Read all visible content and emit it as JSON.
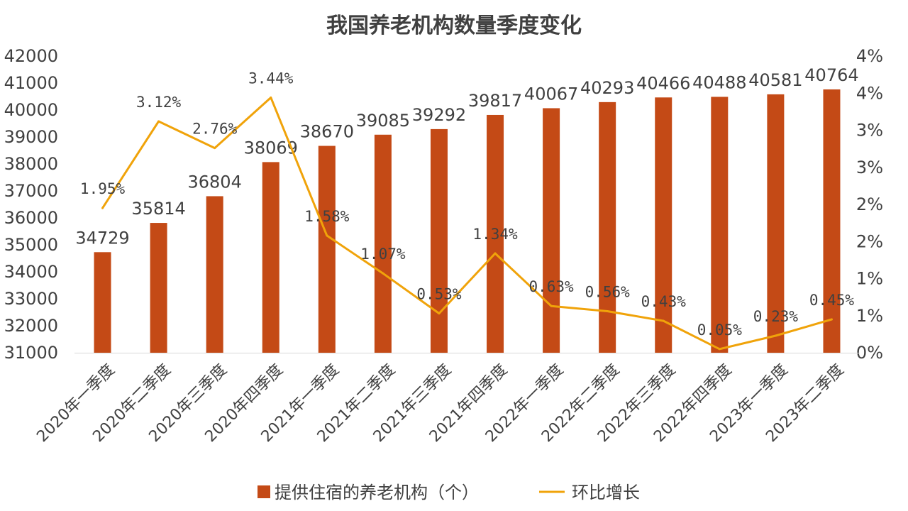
{
  "chart_data": {
    "type": "bar",
    "title": "我国养老机构数量季度变化",
    "categories": [
      "2020年一季度",
      "2020年二季度",
      "2020年三季度",
      "2020年四季度",
      "2021年一季度",
      "2021年二季度",
      "2021年三季度",
      "2021年四季度",
      "2022年一季度",
      "2022年二季度",
      "2022年三季度",
      "2022年四季度",
      "2023年一季度",
      "2023年二季度"
    ],
    "series": [
      {
        "name": "提供住宿的养老机构（个）",
        "type": "bar",
        "axis": "left",
        "color": "#C44A16",
        "values": [
          34729,
          35814,
          36804,
          38069,
          38670,
          39085,
          39292,
          39817,
          40067,
          40293,
          40466,
          40488,
          40581,
          40764
        ],
        "labels": [
          "34729",
          "35814",
          "36804",
          "38069",
          "38670",
          "39085",
          "39292",
          "39817",
          "40067",
          "40293",
          "40466",
          "40488",
          "40581",
          "40764"
        ]
      },
      {
        "name": "环比增长",
        "type": "line",
        "axis": "right",
        "color": "#F0A30A",
        "values": [
          1.95,
          3.12,
          2.76,
          3.44,
          1.58,
          1.07,
          0.53,
          1.34,
          0.63,
          0.56,
          0.43,
          0.05,
          0.23,
          0.45
        ],
        "labels": [
          "1.95%",
          "3.12%",
          "2.76%",
          "3.44%",
          "1.58%",
          "1.07%",
          "0.53%",
          "1.34%",
          "0.63%",
          "0.56%",
          "0.43%",
          "0.05%",
          "0.23%",
          "0.45%"
        ]
      }
    ],
    "y_left": {
      "min": 31000,
      "max": 42000,
      "ticks": [
        "42000",
        "41000",
        "40000",
        "39000",
        "38000",
        "37000",
        "36000",
        "35000",
        "34000",
        "33000",
        "32000",
        "31000"
      ]
    },
    "y_right": {
      "min": 0,
      "max": 4,
      "ticks": [
        "4%",
        "4%",
        "3%",
        "3%",
        "2%",
        "2%",
        "1%",
        "1%",
        "0%"
      ]
    },
    "grid": false,
    "legend_position": "bottom"
  }
}
